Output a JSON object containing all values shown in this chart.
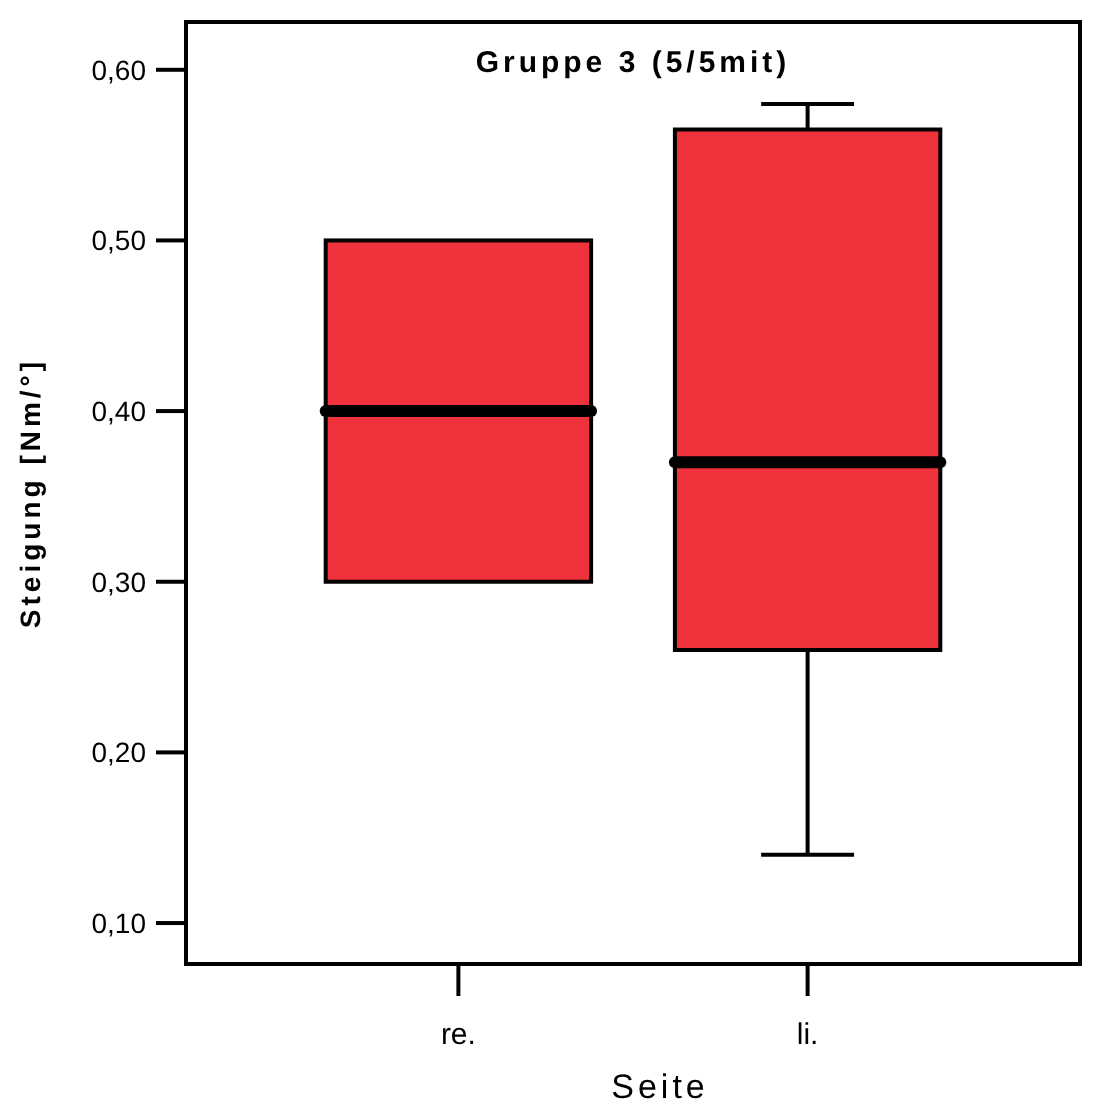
{
  "chart_data": {
    "type": "box",
    "title": "Gruppe 3 (5/5mit)",
    "xlabel": "Seite",
    "ylabel": "Steigung [Nm/°]",
    "categories": [
      "re.",
      "li."
    ],
    "color": "#ef323b",
    "boxes": [
      {
        "low": 0.3,
        "q1": 0.3,
        "median": 0.4,
        "q3": 0.5,
        "high": 0.5
      },
      {
        "low": 0.14,
        "q1": 0.26,
        "median": 0.37,
        "q3": 0.565,
        "high": 0.58
      }
    ],
    "ylim": [
      0.076,
      0.628
    ],
    "yticks": [
      {
        "value": 0.1,
        "label": "0,10"
      },
      {
        "value": 0.2,
        "label": "0,20"
      },
      {
        "value": 0.3,
        "label": "0,30"
      },
      {
        "value": 0.4,
        "label": "0,40"
      },
      {
        "value": 0.5,
        "label": "0,50"
      },
      {
        "value": 0.6,
        "label": "0,60"
      }
    ],
    "grid": false
  }
}
